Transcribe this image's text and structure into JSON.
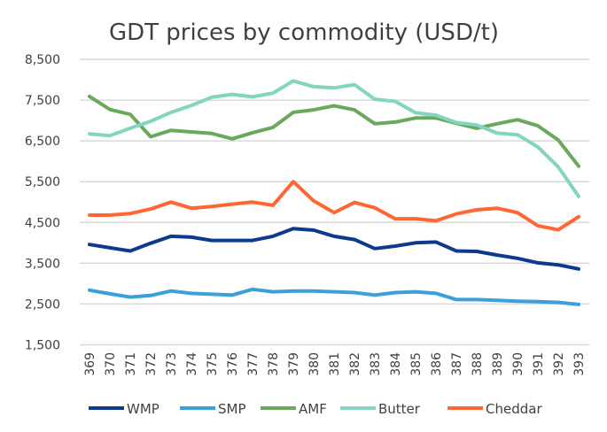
{
  "chart_data": {
    "type": "line",
    "title": "GDT prices by commodity (USD/t)",
    "xlabel": "",
    "ylabel": "",
    "ylim": [
      1500,
      8500
    ],
    "yticks": [
      1500,
      2500,
      3500,
      4500,
      5500,
      6500,
      7500,
      8500
    ],
    "ytick_labels": [
      "1,500",
      "2,500",
      "3,500",
      "4,500",
      "5,500",
      "6,500",
      "7,500",
      "8,500"
    ],
    "grid": true,
    "legend_position": "bottom",
    "categories": [
      "369",
      "370",
      "371",
      "372",
      "373",
      "374",
      "375",
      "376",
      "377",
      "378",
      "379",
      "380",
      "381",
      "382",
      "383",
      "384",
      "385",
      "386",
      "387",
      "388",
      "389",
      "390",
      "391",
      "392",
      "393"
    ],
    "series": [
      {
        "name": "WMP",
        "color": "#0D3A8C",
        "values": [
          3960,
          3880,
          3800,
          3990,
          4160,
          4140,
          4060,
          4060,
          4060,
          4160,
          4350,
          4310,
          4160,
          4080,
          3860,
          3920,
          4000,
          4020,
          3800,
          3790,
          3700,
          3620,
          3510,
          3460,
          3360
        ]
      },
      {
        "name": "SMP",
        "color": "#3AA0DA",
        "values": [
          2840,
          2750,
          2670,
          2710,
          2820,
          2760,
          2740,
          2720,
          2860,
          2800,
          2820,
          2820,
          2800,
          2780,
          2720,
          2780,
          2800,
          2760,
          2610,
          2610,
          2590,
          2570,
          2560,
          2540,
          2490
        ]
      },
      {
        "name": "AMF",
        "color": "#6AA85B",
        "values": [
          7590,
          7270,
          7150,
          6600,
          6760,
          6720,
          6680,
          6550,
          6700,
          6830,
          7200,
          7260,
          7360,
          7260,
          6920,
          6960,
          7060,
          7060,
          6930,
          6810,
          6920,
          7020,
          6870,
          6520,
          5880
        ]
      },
      {
        "name": "Butter",
        "color": "#82D5C0",
        "values": [
          6670,
          6630,
          6810,
          6980,
          7200,
          7370,
          7570,
          7640,
          7580,
          7670,
          7970,
          7830,
          7800,
          7880,
          7520,
          7470,
          7190,
          7130,
          6950,
          6890,
          6690,
          6650,
          6350,
          5860,
          5140
        ]
      },
      {
        "name": "Cheddar",
        "color": "#FF6633",
        "values": [
          4680,
          4680,
          4720,
          4830,
          5000,
          4850,
          4890,
          4950,
          5000,
          4920,
          5500,
          5030,
          4740,
          4990,
          4860,
          4590,
          4590,
          4540,
          4710,
          4810,
          4850,
          4740,
          4420,
          4320,
          4640
        ]
      }
    ]
  }
}
